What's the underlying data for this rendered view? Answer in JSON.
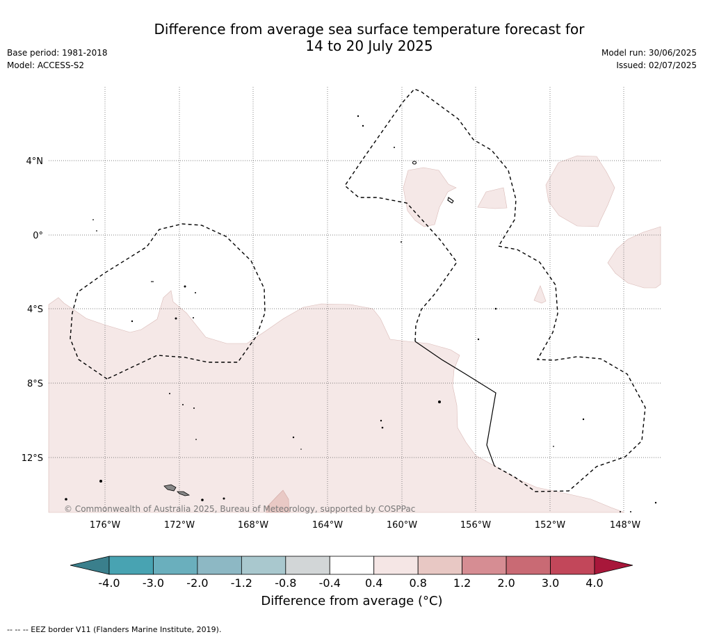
{
  "title": {
    "line1": "Difference from average sea surface temperature forecast for",
    "line2": "14 to 20 July 2025"
  },
  "meta_left": {
    "base_period": "Base period: 1981-2018",
    "model": "Model: ACCESS-S2"
  },
  "meta_right": {
    "model_run": "Model run: 30/06/2025",
    "issued": "Issued: 02/07/2025"
  },
  "map": {
    "lat_labels": [
      "4°N",
      "0°",
      "4°S",
      "8°S",
      "12°S"
    ],
    "lon_labels": [
      "176°W",
      "172°W",
      "168°W",
      "164°W",
      "160°W",
      "156°W",
      "152°W",
      "148°W"
    ],
    "copyright": "© Commonwealth of Australia 2025, Bureau of Meteorology, supported by COSPPac"
  },
  "colorbar": {
    "ticks": [
      "-4.0",
      "-3.0",
      "-2.0",
      "-1.2",
      "-0.8",
      "-0.4",
      "0.4",
      "0.8",
      "1.2",
      "2.0",
      "3.0",
      "4.0"
    ],
    "colors": [
      "#48a3b2",
      "#6aafbd",
      "#8db8c4",
      "#a9c8ce",
      "#d2d6d7",
      "#ffffff",
      "#f5e6e5",
      "#e8c8c4",
      "#d68d93",
      "#c96a74",
      "#c2475a"
    ],
    "low_extend_color": "#3a7f8c",
    "high_extend_color": "#a8173a",
    "label": "Difference from average (°C)"
  },
  "footer": "--  --  -- EEZ border V11 (Flanders Marine Institute, 2019)."
}
